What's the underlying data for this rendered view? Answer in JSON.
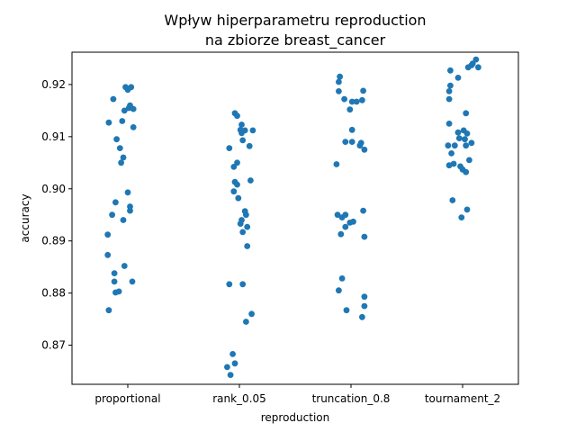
{
  "chart_data": {
    "type": "scatter",
    "title_line1": "Wpływ hiperparametru reproduction",
    "title_line2": "na zbiorze breast_cancer",
    "xlabel": "reproduction",
    "ylabel": "accuracy",
    "categories": [
      "proportional",
      "rank_0.05",
      "truncation_0.8",
      "tournament_2"
    ],
    "ylim": [
      0.8625,
      0.9262
    ],
    "yticks": [
      0.87,
      0.88,
      0.89,
      0.9,
      0.91,
      0.92
    ],
    "ytick_labels": [
      "0.87",
      "0.88",
      "0.89",
      "0.90",
      "0.91",
      "0.92"
    ],
    "grid": false,
    "point_color": "#1f77b4",
    "series": [
      {
        "category": "proportional",
        "points": [
          {
            "jitter": -0.02,
            "y": 0.9195
          },
          {
            "jitter": 0.03,
            "y": 0.9195
          },
          {
            "jitter": 0.0,
            "y": 0.919
          },
          {
            "jitter": -0.13,
            "y": 0.9172
          },
          {
            "jitter": 0.02,
            "y": 0.916
          },
          {
            "jitter": 0.05,
            "y": 0.9153
          },
          {
            "jitter": -0.03,
            "y": 0.915
          },
          {
            "jitter": 0.01,
            "y": 0.9155
          },
          {
            "jitter": -0.17,
            "y": 0.9127
          },
          {
            "jitter": -0.05,
            "y": 0.913
          },
          {
            "jitter": 0.05,
            "y": 0.9118
          },
          {
            "jitter": -0.1,
            "y": 0.9095
          },
          {
            "jitter": -0.07,
            "y": 0.9078
          },
          {
            "jitter": -0.04,
            "y": 0.906
          },
          {
            "jitter": -0.06,
            "y": 0.905
          },
          {
            "jitter": 0.0,
            "y": 0.8993
          },
          {
            "jitter": -0.11,
            "y": 0.8974
          },
          {
            "jitter": 0.02,
            "y": 0.8966
          },
          {
            "jitter": 0.02,
            "y": 0.8958
          },
          {
            "jitter": -0.14,
            "y": 0.895
          },
          {
            "jitter": -0.04,
            "y": 0.894
          },
          {
            "jitter": -0.18,
            "y": 0.8912
          },
          {
            "jitter": -0.18,
            "y": 0.8873
          },
          {
            "jitter": -0.03,
            "y": 0.8852
          },
          {
            "jitter": -0.12,
            "y": 0.8838
          },
          {
            "jitter": -0.12,
            "y": 0.8822
          },
          {
            "jitter": 0.04,
            "y": 0.8822
          },
          {
            "jitter": -0.08,
            "y": 0.8803
          },
          {
            "jitter": -0.11,
            "y": 0.8801
          },
          {
            "jitter": -0.17,
            "y": 0.8767
          }
        ]
      },
      {
        "category": "rank_0.05",
        "points": [
          {
            "jitter": -0.04,
            "y": 0.9145
          },
          {
            "jitter": -0.02,
            "y": 0.914
          },
          {
            "jitter": 0.02,
            "y": 0.9123
          },
          {
            "jitter": 0.05,
            "y": 0.9112
          },
          {
            "jitter": 0.01,
            "y": 0.9113
          },
          {
            "jitter": 0.12,
            "y": 0.9112
          },
          {
            "jitter": 0.02,
            "y": 0.9107
          },
          {
            "jitter": 0.03,
            "y": 0.9093
          },
          {
            "jitter": 0.09,
            "y": 0.9082
          },
          {
            "jitter": -0.09,
            "y": 0.9078
          },
          {
            "jitter": -0.02,
            "y": 0.905
          },
          {
            "jitter": -0.05,
            "y": 0.9042
          },
          {
            "jitter": 0.1,
            "y": 0.9016
          },
          {
            "jitter": -0.04,
            "y": 0.9013
          },
          {
            "jitter": -0.02,
            "y": 0.9008
          },
          {
            "jitter": -0.05,
            "y": 0.8995
          },
          {
            "jitter": -0.01,
            "y": 0.8982
          },
          {
            "jitter": 0.05,
            "y": 0.8957
          },
          {
            "jitter": 0.06,
            "y": 0.895
          },
          {
            "jitter": 0.02,
            "y": 0.894
          },
          {
            "jitter": 0.01,
            "y": 0.8933
          },
          {
            "jitter": 0.07,
            "y": 0.8927
          },
          {
            "jitter": 0.03,
            "y": 0.8917
          },
          {
            "jitter": 0.07,
            "y": 0.889
          },
          {
            "jitter": -0.09,
            "y": 0.8817
          },
          {
            "jitter": 0.03,
            "y": 0.8817
          },
          {
            "jitter": 0.11,
            "y": 0.876
          },
          {
            "jitter": 0.06,
            "y": 0.8745
          },
          {
            "jitter": -0.06,
            "y": 0.8683
          },
          {
            "jitter": -0.04,
            "y": 0.8665
          },
          {
            "jitter": -0.11,
            "y": 0.8658
          },
          {
            "jitter": -0.08,
            "y": 0.8643
          }
        ]
      },
      {
        "category": "truncation_0.8",
        "points": [
          {
            "jitter": -0.1,
            "y": 0.9215
          },
          {
            "jitter": -0.11,
            "y": 0.9205
          },
          {
            "jitter": -0.11,
            "y": 0.9187
          },
          {
            "jitter": 0.11,
            "y": 0.9188
          },
          {
            "jitter": -0.06,
            "y": 0.9172
          },
          {
            "jitter": 0.01,
            "y": 0.9167
          },
          {
            "jitter": 0.05,
            "y": 0.9167
          },
          {
            "jitter": 0.1,
            "y": 0.917
          },
          {
            "jitter": -0.01,
            "y": 0.9152
          },
          {
            "jitter": 0.01,
            "y": 0.9113
          },
          {
            "jitter": -0.05,
            "y": 0.909
          },
          {
            "jitter": 0.01,
            "y": 0.909
          },
          {
            "jitter": 0.09,
            "y": 0.9088
          },
          {
            "jitter": 0.08,
            "y": 0.9083
          },
          {
            "jitter": 0.12,
            "y": 0.9075
          },
          {
            "jitter": -0.13,
            "y": 0.9047
          },
          {
            "jitter": 0.11,
            "y": 0.8958
          },
          {
            "jitter": -0.12,
            "y": 0.895
          },
          {
            "jitter": -0.05,
            "y": 0.895
          },
          {
            "jitter": -0.08,
            "y": 0.8945
          },
          {
            "jitter": 0.02,
            "y": 0.8937
          },
          {
            "jitter": -0.01,
            "y": 0.8935
          },
          {
            "jitter": -0.05,
            "y": 0.8927
          },
          {
            "jitter": -0.09,
            "y": 0.8913
          },
          {
            "jitter": 0.12,
            "y": 0.8908
          },
          {
            "jitter": -0.08,
            "y": 0.8828
          },
          {
            "jitter": -0.11,
            "y": 0.8805
          },
          {
            "jitter": 0.12,
            "y": 0.8793
          },
          {
            "jitter": 0.12,
            "y": 0.8775
          },
          {
            "jitter": -0.04,
            "y": 0.8767
          },
          {
            "jitter": 0.1,
            "y": 0.8754
          }
        ]
      },
      {
        "category": "tournament_2",
        "points": [
          {
            "jitter": 0.12,
            "y": 0.9248
          },
          {
            "jitter": 0.09,
            "y": 0.924
          },
          {
            "jitter": 0.08,
            "y": 0.9237
          },
          {
            "jitter": 0.14,
            "y": 0.9233
          },
          {
            "jitter": 0.05,
            "y": 0.9233
          },
          {
            "jitter": -0.11,
            "y": 0.9227
          },
          {
            "jitter": -0.04,
            "y": 0.9213
          },
          {
            "jitter": -0.11,
            "y": 0.9198
          },
          {
            "jitter": -0.12,
            "y": 0.9187
          },
          {
            "jitter": -0.12,
            "y": 0.9172
          },
          {
            "jitter": 0.03,
            "y": 0.9145
          },
          {
            "jitter": -0.12,
            "y": 0.9125
          },
          {
            "jitter": 0.01,
            "y": 0.9112
          },
          {
            "jitter": -0.04,
            "y": 0.9108
          },
          {
            "jitter": 0.04,
            "y": 0.9106
          },
          {
            "jitter": -0.03,
            "y": 0.9097
          },
          {
            "jitter": 0.02,
            "y": 0.9095
          },
          {
            "jitter": 0.08,
            "y": 0.9088
          },
          {
            "jitter": -0.13,
            "y": 0.9083
          },
          {
            "jitter": -0.07,
            "y": 0.9083
          },
          {
            "jitter": 0.03,
            "y": 0.9083
          },
          {
            "jitter": -0.1,
            "y": 0.9068
          },
          {
            "jitter": 0.06,
            "y": 0.9055
          },
          {
            "jitter": -0.08,
            "y": 0.9048
          },
          {
            "jitter": -0.12,
            "y": 0.9045
          },
          {
            "jitter": -0.02,
            "y": 0.9043
          },
          {
            "jitter": 0.0,
            "y": 0.9037
          },
          {
            "jitter": 0.03,
            "y": 0.9032
          },
          {
            "jitter": -0.09,
            "y": 0.8978
          },
          {
            "jitter": 0.04,
            "y": 0.896
          },
          {
            "jitter": -0.01,
            "y": 0.8945
          }
        ]
      }
    ]
  }
}
